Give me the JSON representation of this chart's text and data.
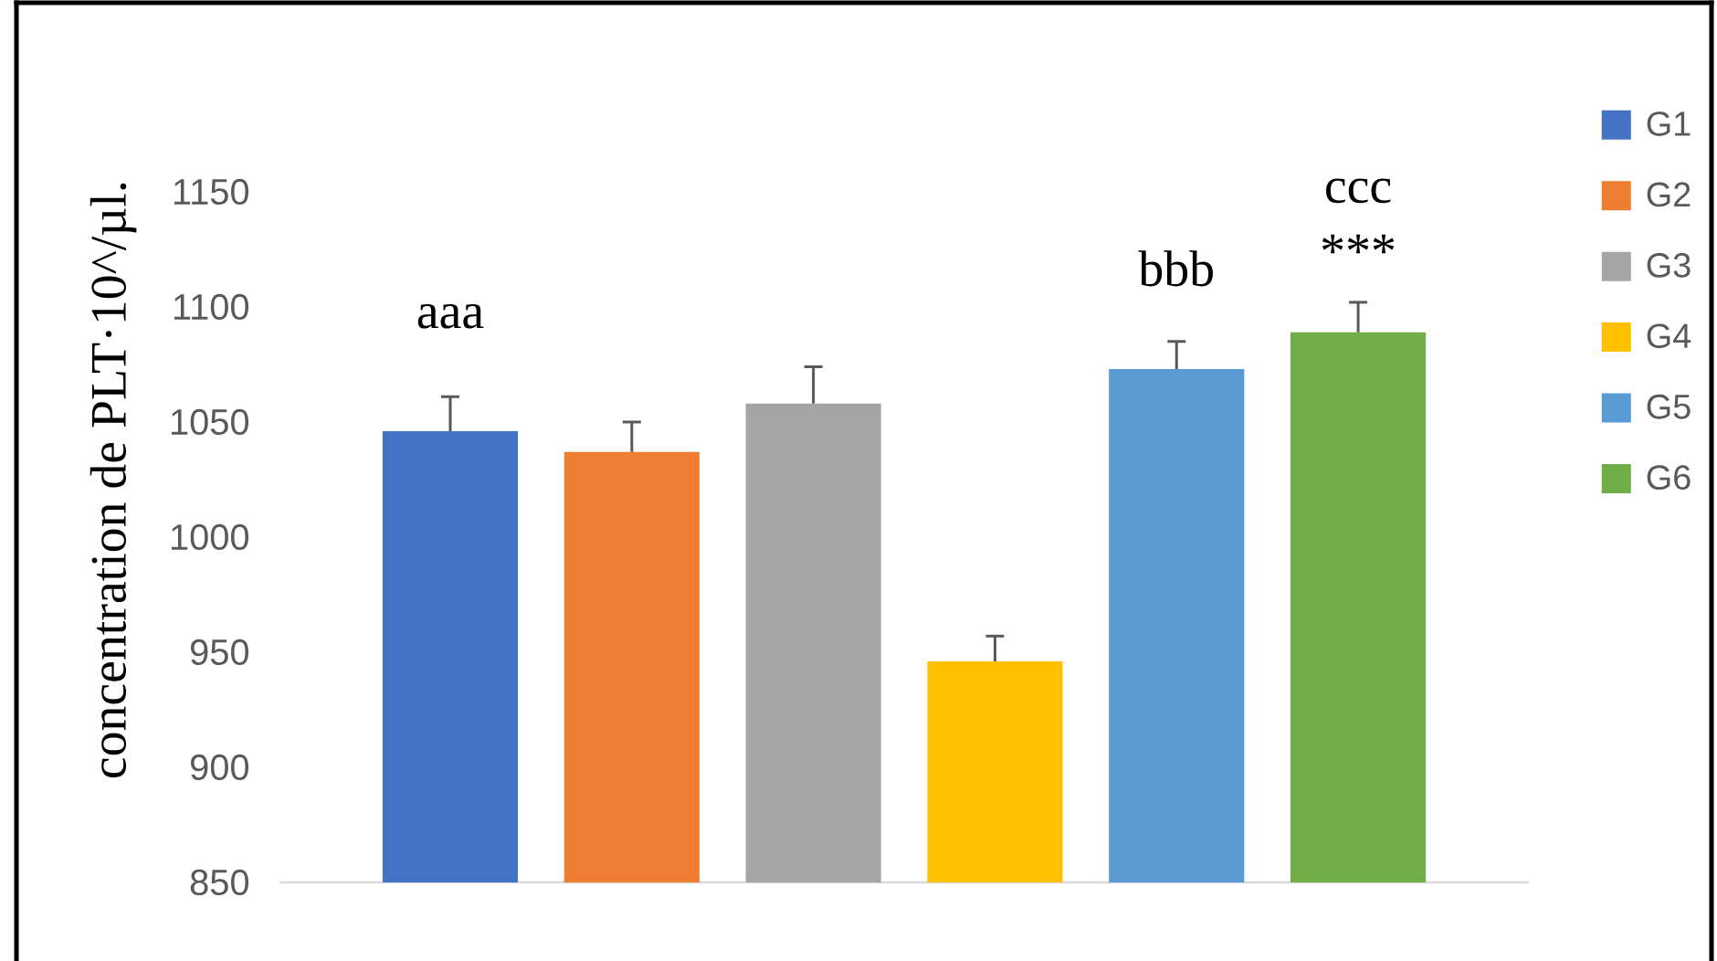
{
  "chart_data": {
    "type": "bar",
    "ylabel": "concentration de PLT·10^/µl.",
    "categories": [
      null
    ],
    "series": [
      {
        "name": "G1",
        "color": "#4472c4",
        "values": [
          1046
        ],
        "errors": [
          [
            1046,
            1061
          ]
        ]
      },
      {
        "name": "G2",
        "color": "#ed7d31",
        "values": [
          1037
        ],
        "errors": [
          [
            1037,
            1050
          ]
        ]
      },
      {
        "name": "G3",
        "color": "#a5a5a5",
        "values": [
          1058
        ],
        "errors": [
          [
            1058,
            1074
          ]
        ]
      },
      {
        "name": "G4",
        "color": "#ffc000",
        "values": [
          946
        ],
        "errors": [
          [
            946,
            957
          ]
        ]
      },
      {
        "name": "G5",
        "color": "#5b9bd5",
        "values": [
          1073
        ],
        "errors": [
          [
            1073,
            1085
          ]
        ]
      },
      {
        "name": "G6",
        "color": "#70ad47",
        "values": [
          1089
        ],
        "errors": [
          [
            1089,
            1102
          ]
        ]
      }
    ],
    "ylim": [
      850,
      1150
    ],
    "yticks": [
      850,
      900,
      950,
      1000,
      1050,
      1100,
      1150
    ],
    "legend": "top right",
    "tick_labels": "y",
    "annotations": [
      "aaa",
      "bbb",
      "***",
      "ccc"
    ]
  }
}
